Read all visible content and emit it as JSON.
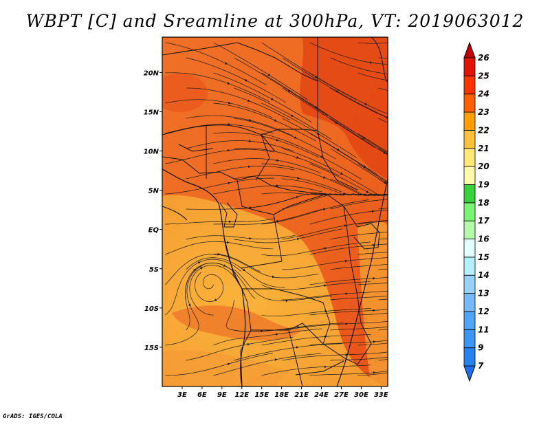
{
  "title": "WBPT [C] and Sreamline at 300hPa, VT: 2019063012",
  "footer": "GrADS: IGES/COLA",
  "map": {
    "region": "Central / Southern Africa",
    "lon_range": [
      0,
      34
    ],
    "lat_range": [
      -20,
      24.5
    ],
    "lon_ticks": [
      {
        "value": 3,
        "label": "3E"
      },
      {
        "value": 6,
        "label": "6E"
      },
      {
        "value": 9,
        "label": "9E"
      },
      {
        "value": 12,
        "label": "12E"
      },
      {
        "value": 15,
        "label": "15E"
      },
      {
        "value": 18,
        "label": "18E"
      },
      {
        "value": 21,
        "label": "21E"
      },
      {
        "value": 24,
        "label": "24E"
      },
      {
        "value": 27,
        "label": "27E"
      },
      {
        "value": 30,
        "label": "30E"
      },
      {
        "value": 33,
        "label": "33E"
      }
    ],
    "lat_ticks": [
      {
        "value": 20,
        "label": "20N"
      },
      {
        "value": 15,
        "label": "15N"
      },
      {
        "value": 10,
        "label": "10N"
      },
      {
        "value": 5,
        "label": "5N"
      },
      {
        "value": 0,
        "label": "EQ"
      },
      {
        "value": -5,
        "label": "5S"
      },
      {
        "value": -10,
        "label": "10S"
      },
      {
        "value": -15,
        "label": "15S"
      }
    ],
    "field_variable": "WBPT",
    "field_units": "C",
    "streamline_level": "300hPa"
  },
  "colorbar": {
    "levels": [
      "7",
      "9",
      "11",
      "12",
      "13",
      "14",
      "15",
      "16",
      "17",
      "18",
      "19",
      "20",
      "21",
      "22",
      "23",
      "24",
      "25",
      "26"
    ],
    "colors": [
      "#1e6eeb",
      "#2882f0",
      "#3c96f5",
      "#50a5f5",
      "#78b9fa",
      "#96d2fa",
      "#b4f0fa",
      "#e1ffff",
      "#b4faaa",
      "#78f573",
      "#37d23c",
      "#fffaaa",
      "#ffe878",
      "#ffc03c",
      "#ffa000",
      "#ff6000",
      "#ff3200",
      "#e11400",
      "#c00000"
    ]
  }
}
